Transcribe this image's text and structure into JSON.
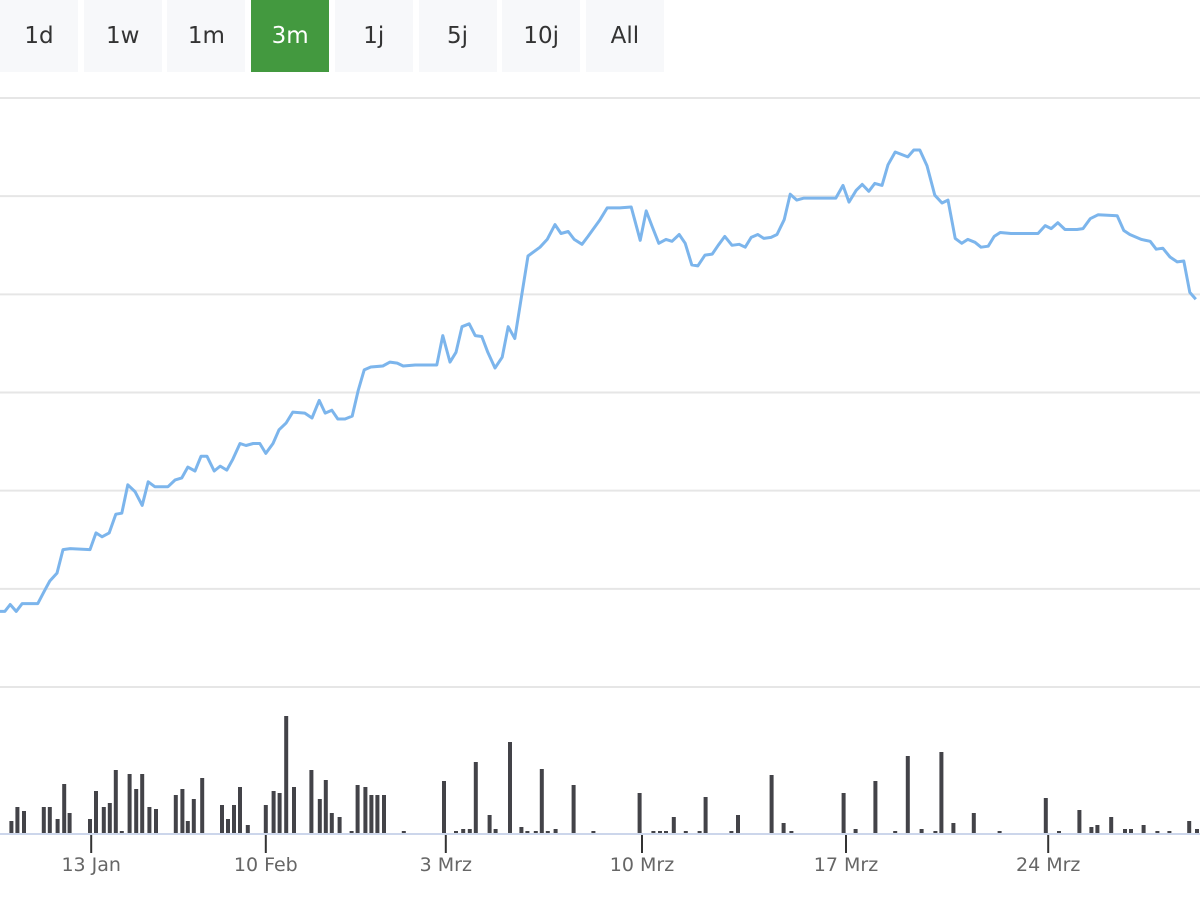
{
  "range_selector": {
    "buttons": [
      {
        "label": "1d"
      },
      {
        "label": "1w"
      },
      {
        "label": "1m"
      },
      {
        "label": "3m",
        "active": true
      },
      {
        "label": "1j"
      },
      {
        "label": "5j"
      },
      {
        "label": "10j"
      },
      {
        "label": "All"
      }
    ],
    "active_color": "#43993f"
  },
  "chart_data": {
    "type": "line",
    "title": "",
    "xlabel": "",
    "ylabel": "",
    "grid": true,
    "x_axis": {
      "type": "ordinal-period",
      "range": [
        0,
        200
      ],
      "ticks": [
        {
          "period": 15.2,
          "label": "13 Jan"
        },
        {
          "period": 44.3,
          "label": "10 Feb"
        },
        {
          "period": 74.3,
          "label": "3 Mrz"
        },
        {
          "period": 107,
          "label": "10 Mrz"
        },
        {
          "period": 141,
          "label": "17 Mrz"
        },
        {
          "period": 174.7,
          "label": "24 Mrz"
        }
      ]
    },
    "price": {
      "color": "#7cb5ec",
      "y_range_gridline_units": [
        0,
        6
      ],
      "points": [
        [
          0,
          0.77
        ],
        [
          0.8,
          0.77
        ],
        [
          1.7,
          0.84
        ],
        [
          2.7,
          0.77
        ],
        [
          3.7,
          0.85
        ],
        [
          6.3,
          0.85
        ],
        [
          7.5,
          0.99
        ],
        [
          8.3,
          1.08
        ],
        [
          9.5,
          1.16
        ],
        [
          10.5,
          1.4
        ],
        [
          11.7,
          1.41
        ],
        [
          15,
          1.4
        ],
        [
          16,
          1.57
        ],
        [
          17,
          1.53
        ],
        [
          18.2,
          1.57
        ],
        [
          19.3,
          1.76
        ],
        [
          20.3,
          1.77
        ],
        [
          21.3,
          2.06
        ],
        [
          22.5,
          1.99
        ],
        [
          23.7,
          1.85
        ],
        [
          24.7,
          2.09
        ],
        [
          25.8,
          2.04
        ],
        [
          28,
          2.04
        ],
        [
          29.2,
          2.11
        ],
        [
          30.3,
          2.13
        ],
        [
          31.3,
          2.24
        ],
        [
          32.5,
          2.2
        ],
        [
          33.5,
          2.35
        ],
        [
          34.5,
          2.35
        ],
        [
          35.7,
          2.2
        ],
        [
          36.7,
          2.25
        ],
        [
          37.8,
          2.21
        ],
        [
          38.8,
          2.32
        ],
        [
          40,
          2.48
        ],
        [
          41,
          2.46
        ],
        [
          42.2,
          2.48
        ],
        [
          43.3,
          2.48
        ],
        [
          44.3,
          2.38
        ],
        [
          45.5,
          2.48
        ],
        [
          46.5,
          2.62
        ],
        [
          47.7,
          2.69
        ],
        [
          48.8,
          2.8
        ],
        [
          50.8,
          2.79
        ],
        [
          52,
          2.74
        ],
        [
          53.2,
          2.92
        ],
        [
          54.2,
          2.79
        ],
        [
          55.3,
          2.82
        ],
        [
          56.3,
          2.73
        ],
        [
          57.5,
          2.73
        ],
        [
          58.7,
          2.76
        ],
        [
          59.7,
          3.02
        ],
        [
          60.7,
          3.23
        ],
        [
          61.8,
          3.26
        ],
        [
          63.8,
          3.27
        ],
        [
          65,
          3.31
        ],
        [
          66.2,
          3.3
        ],
        [
          67.2,
          3.27
        ],
        [
          69.2,
          3.28
        ],
        [
          72.8,
          3.28
        ],
        [
          73.8,
          3.58
        ],
        [
          75,
          3.31
        ],
        [
          76,
          3.41
        ],
        [
          77,
          3.67
        ],
        [
          78.2,
          3.7
        ],
        [
          79.2,
          3.58
        ],
        [
          80.3,
          3.57
        ],
        [
          81.3,
          3.41
        ],
        [
          82.5,
          3.25
        ],
        [
          83.7,
          3.36
        ],
        [
          84.7,
          3.67
        ],
        [
          85.8,
          3.55
        ],
        [
          87,
          4.01
        ],
        [
          88,
          4.39
        ],
        [
          90,
          4.48
        ],
        [
          91.2,
          4.56
        ],
        [
          92.5,
          4.71
        ],
        [
          93.5,
          4.62
        ],
        [
          94.7,
          4.64
        ],
        [
          95.7,
          4.56
        ],
        [
          97,
          4.51
        ],
        [
          98,
          4.59
        ],
        [
          100,
          4.76
        ],
        [
          101.2,
          4.88
        ],
        [
          103.3,
          4.88
        ],
        [
          105.2,
          4.89
        ],
        [
          106.7,
          4.55
        ],
        [
          107.7,
          4.85
        ],
        [
          108.7,
          4.69
        ],
        [
          109.8,
          4.52
        ],
        [
          111,
          4.56
        ],
        [
          112,
          4.54
        ],
        [
          113.2,
          4.61
        ],
        [
          114.2,
          4.52
        ],
        [
          115.3,
          4.3
        ],
        [
          116.3,
          4.29
        ],
        [
          117.5,
          4.4
        ],
        [
          118.7,
          4.41
        ],
        [
          119.7,
          4.5
        ],
        [
          120.8,
          4.59
        ],
        [
          122,
          4.5
        ],
        [
          123.2,
          4.51
        ],
        [
          124.2,
          4.48
        ],
        [
          125.2,
          4.58
        ],
        [
          126.3,
          4.61
        ],
        [
          127.3,
          4.57
        ],
        [
          128.5,
          4.58
        ],
        [
          129.5,
          4.61
        ],
        [
          130.7,
          4.76
        ],
        [
          131.7,
          5.02
        ],
        [
          132.8,
          4.96
        ],
        [
          134,
          4.98
        ],
        [
          139.3,
          4.98
        ],
        [
          140.5,
          5.11
        ],
        [
          141.5,
          4.94
        ],
        [
          142.7,
          5.06
        ],
        [
          143.7,
          5.12
        ],
        [
          144.8,
          5.05
        ],
        [
          145.8,
          5.13
        ],
        [
          147,
          5.11
        ],
        [
          148,
          5.32
        ],
        [
          149.2,
          5.45
        ],
        [
          151.3,
          5.4
        ],
        [
          152.3,
          5.47
        ],
        [
          153.3,
          5.47
        ],
        [
          154.5,
          5.31
        ],
        [
          155.8,
          5.01
        ],
        [
          157,
          4.93
        ],
        [
          158,
          4.96
        ],
        [
          159.2,
          4.57
        ],
        [
          160.3,
          4.52
        ],
        [
          161.3,
          4.56
        ],
        [
          162.5,
          4.53
        ],
        [
          163.5,
          4.48
        ],
        [
          164.7,
          4.49
        ],
        [
          165.7,
          4.59
        ],
        [
          166.7,
          4.63
        ],
        [
          168.5,
          4.62
        ],
        [
          171.2,
          4.62
        ],
        [
          173,
          4.62
        ],
        [
          174.2,
          4.7
        ],
        [
          175.2,
          4.67
        ],
        [
          176.3,
          4.73
        ],
        [
          177.5,
          4.66
        ],
        [
          179.5,
          4.66
        ],
        [
          180.5,
          4.67
        ],
        [
          181.7,
          4.77
        ],
        [
          183,
          4.81
        ],
        [
          186.2,
          4.8
        ],
        [
          187.3,
          4.65
        ],
        [
          188.3,
          4.61
        ],
        [
          190.2,
          4.56
        ],
        [
          191.7,
          4.54
        ],
        [
          192.7,
          4.46
        ],
        [
          193.8,
          4.47
        ],
        [
          195,
          4.38
        ],
        [
          196.2,
          4.33
        ],
        [
          197.3,
          4.34
        ],
        [
          198.3,
          4.02
        ],
        [
          199.3,
          3.95
        ]
      ]
    },
    "volume": {
      "type": "bar",
      "color": "#434348",
      "bars": [
        [
          1.9,
          12
        ],
        [
          2.9,
          26
        ],
        [
          4,
          22
        ],
        [
          7.3,
          26
        ],
        [
          8.3,
          26
        ],
        [
          9.6,
          14
        ],
        [
          10.7,
          49
        ],
        [
          11.6,
          20
        ],
        [
          15,
          14
        ],
        [
          16,
          42
        ],
        [
          17.3,
          26
        ],
        [
          18.3,
          30
        ],
        [
          19.3,
          63
        ],
        [
          20.3,
          2
        ],
        [
          21.6,
          59
        ],
        [
          22.7,
          44
        ],
        [
          23.7,
          59
        ],
        [
          24.9,
          26
        ],
        [
          26,
          24
        ],
        [
          29.3,
          38
        ],
        [
          30.4,
          44
        ],
        [
          31.3,
          12
        ],
        [
          32.3,
          34
        ],
        [
          33.7,
          55
        ],
        [
          37,
          28
        ],
        [
          38,
          14
        ],
        [
          39,
          28
        ],
        [
          40,
          46
        ],
        [
          41.3,
          8
        ],
        [
          44.3,
          28
        ],
        [
          45.6,
          42
        ],
        [
          46.6,
          40
        ],
        [
          47.7,
          117
        ],
        [
          49,
          46
        ],
        [
          51.9,
          63
        ],
        [
          53.3,
          34
        ],
        [
          54.3,
          53
        ],
        [
          55.3,
          20
        ],
        [
          56.6,
          16
        ],
        [
          58.6,
          2
        ],
        [
          59.6,
          48
        ],
        [
          60.9,
          46
        ],
        [
          61.9,
          38
        ],
        [
          62.9,
          38
        ],
        [
          64,
          38
        ],
        [
          67.3,
          2
        ],
        [
          74,
          52
        ],
        [
          76,
          2
        ],
        [
          77.2,
          4
        ],
        [
          78.3,
          4
        ],
        [
          79.3,
          71
        ],
        [
          81.6,
          18
        ],
        [
          82.6,
          4
        ],
        [
          85,
          91
        ],
        [
          86.9,
          6
        ],
        [
          87.9,
          2
        ],
        [
          89.3,
          2
        ],
        [
          90.3,
          64
        ],
        [
          91.3,
          2
        ],
        [
          92.6,
          4
        ],
        [
          95.6,
          48
        ],
        [
          98.9,
          2
        ],
        [
          106.6,
          40
        ],
        [
          108.9,
          2
        ],
        [
          110,
          2
        ],
        [
          111,
          2
        ],
        [
          112.3,
          16
        ],
        [
          114.3,
          2
        ],
        [
          116.6,
          2
        ],
        [
          117.6,
          36
        ],
        [
          121.9,
          2
        ],
        [
          123,
          18
        ],
        [
          128.6,
          58
        ],
        [
          130.6,
          10
        ],
        [
          131.9,
          2
        ],
        [
          140.6,
          40
        ],
        [
          142.6,
          4
        ],
        [
          145.9,
          52
        ],
        [
          149.2,
          2
        ],
        [
          151.3,
          77
        ],
        [
          153.6,
          4
        ],
        [
          155.9,
          2
        ],
        [
          156.9,
          81
        ],
        [
          158.9,
          10
        ],
        [
          162.3,
          20
        ],
        [
          166.6,
          2
        ],
        [
          174.3,
          35
        ],
        [
          176.5,
          2
        ],
        [
          179.9,
          23
        ],
        [
          181.9,
          6
        ],
        [
          182.9,
          8
        ],
        [
          185.2,
          16
        ],
        [
          187.5,
          4
        ],
        [
          188.5,
          4
        ],
        [
          190.6,
          8
        ],
        [
          192.9,
          2
        ],
        [
          194.9,
          2
        ],
        [
          198.2,
          12
        ],
        [
          199.5,
          4
        ]
      ]
    }
  }
}
